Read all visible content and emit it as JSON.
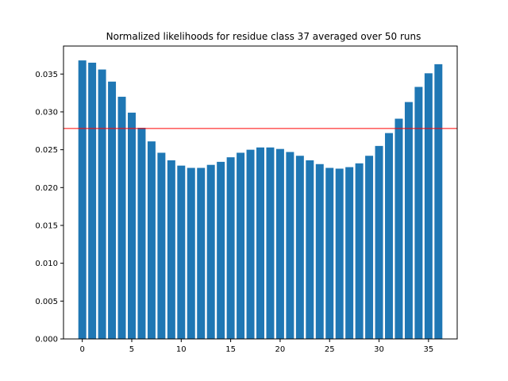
{
  "chart_data": {
    "type": "bar",
    "title": "Normalized likelihoods for residue class 37 averaged over 50 runs",
    "xlabel": "",
    "ylabel": "",
    "x": [
      0,
      1,
      2,
      3,
      4,
      5,
      6,
      7,
      8,
      9,
      10,
      11,
      12,
      13,
      14,
      15,
      16,
      17,
      18,
      19,
      20,
      21,
      22,
      23,
      24,
      25,
      26,
      27,
      28,
      29,
      30,
      31,
      32,
      33,
      34,
      35,
      36
    ],
    "values": [
      0.0368,
      0.0365,
      0.0356,
      0.034,
      0.032,
      0.0299,
      0.0279,
      0.0261,
      0.0246,
      0.0236,
      0.0229,
      0.0226,
      0.0226,
      0.023,
      0.0234,
      0.024,
      0.0246,
      0.025,
      0.0253,
      0.0253,
      0.0251,
      0.0247,
      0.0242,
      0.0236,
      0.0231,
      0.0226,
      0.0225,
      0.0227,
      0.0232,
      0.0242,
      0.0255,
      0.0272,
      0.0291,
      0.0313,
      0.0333,
      0.0351,
      0.0363
    ],
    "reference_line": 0.0278,
    "xlim": [
      -1.9,
      37.9
    ],
    "ylim": [
      0.0,
      0.0387
    ],
    "xticks": [
      0,
      5,
      10,
      15,
      20,
      25,
      30,
      35
    ],
    "yticks": [
      0.0,
      0.005,
      0.01,
      0.015,
      0.02,
      0.025,
      0.03,
      0.035
    ],
    "ytick_labels": [
      "0.000",
      "0.005",
      "0.010",
      "0.015",
      "0.020",
      "0.025",
      "0.030",
      "0.035"
    ],
    "grid": false,
    "legend": "none",
    "colors": {
      "bar": "#1f77b4",
      "reference_line": "#ff0000"
    }
  }
}
